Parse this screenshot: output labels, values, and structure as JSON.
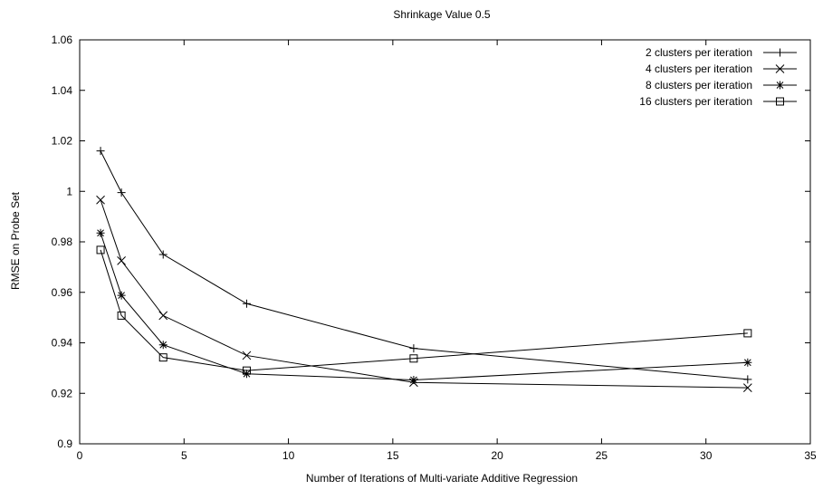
{
  "chart_data": {
    "type": "line",
    "title": "Shrinkage Value 0.5",
    "xlabel": "Number of Iterations of Multi-variate Additive Regression",
    "ylabel": "RMSE on Probe Set",
    "xlim": [
      0,
      35
    ],
    "ylim": [
      0.9,
      1.06
    ],
    "xticks": [
      0,
      5,
      10,
      15,
      20,
      25,
      30,
      35
    ],
    "yticks": [
      0.9,
      0.92,
      0.94,
      0.96,
      0.98,
      1,
      1.02,
      1.04,
      1.06
    ],
    "xtick_labels": [
      "0",
      "5",
      "10",
      "15",
      "20",
      "25",
      "30",
      "35"
    ],
    "ytick_labels": [
      "0.9",
      "0.92",
      "0.94",
      "0.96",
      "0.98",
      "1",
      "1.02",
      "1.04",
      "1.06"
    ],
    "grid": false,
    "legend_position": "top-right",
    "x": [
      1,
      2,
      4,
      8,
      16,
      32
    ],
    "series": [
      {
        "name": "2 clusters per iteration",
        "marker": "plus",
        "values": [
          1.016,
          0.9995,
          0.975,
          0.9555,
          0.9378,
          0.9255
        ]
      },
      {
        "name": "4 clusters per iteration",
        "marker": "cross",
        "values": [
          0.9966,
          0.9725,
          0.9508,
          0.935,
          0.9243,
          0.9222
        ]
      },
      {
        "name": "8 clusters per iteration",
        "marker": "star",
        "values": [
          0.9835,
          0.9588,
          0.9392,
          0.9277,
          0.9253,
          0.9322
        ]
      },
      {
        "name": "16 clusters per iteration",
        "marker": "square",
        "values": [
          0.9768,
          0.9508,
          0.9342,
          0.929,
          0.9338,
          0.9438
        ]
      }
    ]
  }
}
